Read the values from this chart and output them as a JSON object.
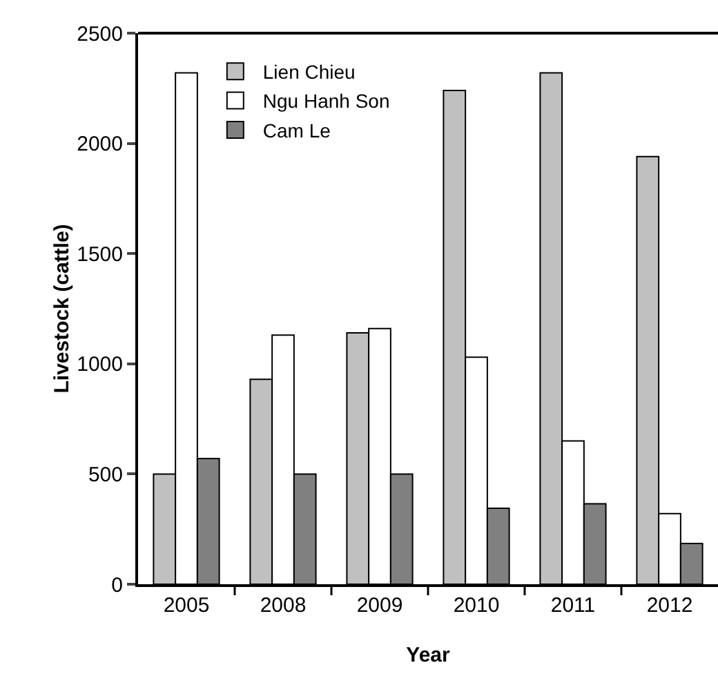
{
  "chart_data": {
    "type": "bar",
    "xlabel": "Year",
    "ylabel": "Livestock (cattle)",
    "categories": [
      "2005",
      "2008",
      "2009",
      "2010",
      "2011",
      "2012"
    ],
    "series": [
      {
        "name": "Lien Chieu",
        "color": "#c0c0c0",
        "values": [
          500,
          930,
          1140,
          2240,
          2320,
          1940
        ]
      },
      {
        "name": "Ngu Hanh Son",
        "color": "#ffffff",
        "values": [
          2320,
          1130,
          1160,
          1030,
          650,
          320
        ]
      },
      {
        "name": "Cam Le",
        "color": "#808080",
        "values": [
          570,
          500,
          500,
          345,
          365,
          185
        ]
      }
    ],
    "ylim": [
      0,
      2500
    ],
    "yticks": [
      0,
      500,
      1000,
      1500,
      2000,
      2500
    ],
    "grid": false,
    "legend": "top left"
  }
}
